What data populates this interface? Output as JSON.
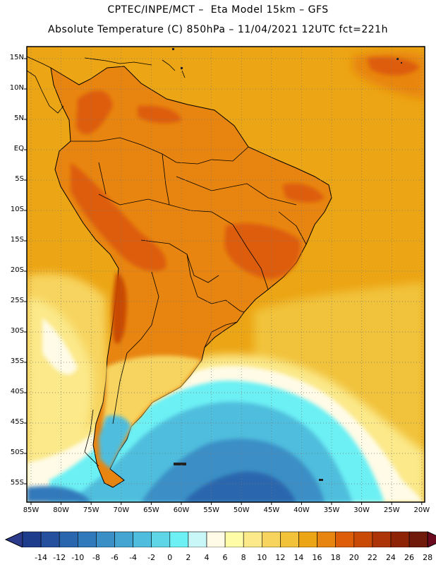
{
  "title_line1": "CPTEC/INPE/MCT –  Eta Model 15km – GFS",
  "title_line2": "Absolute Temperature (C) 850hPa – 11/04/2021 12UTC fct=221h",
  "lat_labels": [
    "15N",
    "10N",
    "5N",
    "EQ",
    "5S",
    "10S",
    "15S",
    "20S",
    "25S",
    "30S",
    "35S",
    "40S",
    "45S",
    "50S",
    "55S"
  ],
  "lon_labels": [
    "85W",
    "80W",
    "75W",
    "70W",
    "65W",
    "60W",
    "55W",
    "50W",
    "45W",
    "40W",
    "35W",
    "30W",
    "25W",
    "20W"
  ],
  "colorbar": {
    "labels": [
      "-14",
      "-12",
      "-10",
      "-8",
      "-6",
      "-4",
      "-2",
      "0",
      "2",
      "4",
      "6",
      "8",
      "10",
      "12",
      "14",
      "16",
      "18",
      "20",
      "22",
      "24",
      "26",
      "28"
    ],
    "colors": [
      "#1e3c8c",
      "#24509e",
      "#2a66ad",
      "#3079bb",
      "#3a8fc6",
      "#44a5d2",
      "#4fbddd",
      "#5fd6e8",
      "#6cf0f4",
      "#c9f6f6",
      "#fffbe6",
      "#fffca8",
      "#fbe98a",
      "#f7d45e",
      "#f1c23a",
      "#eca514",
      "#e88510",
      "#dd5d08",
      "#c94a06",
      "#ad3406",
      "#8e2406",
      "#701a0c"
    ]
  },
  "map": {
    "gridlines": "dotted",
    "projection": "lat-lon",
    "lat_range": [
      "56S",
      "17N"
    ],
    "lon_range": [
      "86W",
      "19W"
    ]
  }
}
